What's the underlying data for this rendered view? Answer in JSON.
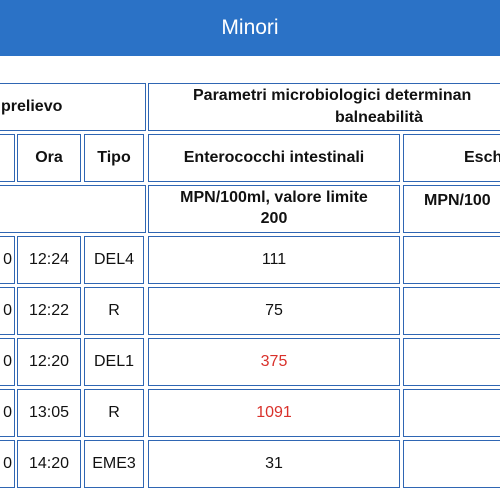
{
  "app": {
    "title": "Minori"
  },
  "table": {
    "group_headers": {
      "prelievo": "prelievo",
      "parametri_line1": "Parametri microbiologici determinan",
      "parametri_line2": "balneabilità"
    },
    "columns": {
      "ora": "Ora",
      "tipo": "Tipo",
      "enterococchi": "Enterococchi intestinali",
      "escherichia_partial": "Esch"
    },
    "units": {
      "enterococchi_line1": "MPN/100ml, valore limite",
      "enterococchi_line2": "200",
      "escherichia_partial": "MPN/100"
    },
    "rows": [
      {
        "date_tail": "0",
        "ora": "12:24",
        "tipo": "DEL4",
        "enterococchi": "111",
        "exceeds": false
      },
      {
        "date_tail": "0",
        "ora": "12:22",
        "tipo": "R",
        "enterococchi": "75",
        "exceeds": false
      },
      {
        "date_tail": "0",
        "ora": "12:20",
        "tipo": "DEL1",
        "enterococchi": "375",
        "exceeds": true
      },
      {
        "date_tail": "0",
        "ora": "13:05",
        "tipo": "R",
        "enterococchi": "1091",
        "exceeds": true
      },
      {
        "date_tail": "0",
        "ora": "14:20",
        "tipo": "EME3",
        "enterococchi": "31",
        "exceeds": false
      }
    ],
    "colors": {
      "header_bg": "#2b72c6",
      "border": "#2f66b3",
      "exceeds_text": "#d9312b"
    }
  }
}
